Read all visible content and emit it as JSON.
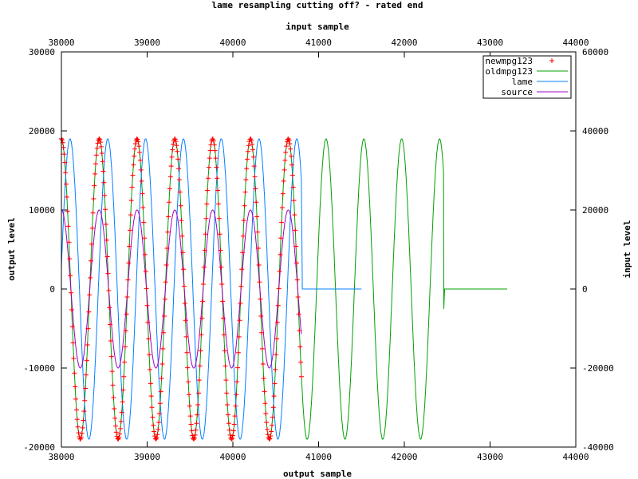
{
  "chart_data": {
    "type": "line",
    "title": "lame resampling cutting off? - rated end",
    "xlabel": "output sample",
    "ylabel": "output level",
    "x2label": "input sample",
    "y2label": "input level",
    "xlim": [
      38000,
      44000
    ],
    "ylim": [
      -20000,
      30000
    ],
    "x2lim": [
      38000,
      44000
    ],
    "y2lim": [
      -40000,
      60000
    ],
    "grid": false,
    "legend_position": "top-right",
    "x_ticks": [
      "38000",
      "39000",
      "40000",
      "41000",
      "42000",
      "43000",
      "44000"
    ],
    "y_ticks": [
      "-20000",
      "-10000",
      "0",
      "10000",
      "20000",
      "30000"
    ],
    "x2_ticks": [
      "38000",
      "39000",
      "40000",
      "41000",
      "42000",
      "43000",
      "44000"
    ],
    "y2_ticks": [
      "-40000",
      "-20000",
      "0",
      "20000",
      "40000",
      "60000"
    ],
    "series": [
      {
        "name": "newmpg123",
        "color": "#ff0000",
        "style": "points-plus",
        "axes": "x1y1",
        "x_range": [
          38000,
          40800
        ],
        "period": 441,
        "amplitude": 19000,
        "offset_start": 17000,
        "end_values": [
          -1000,
          -2500
        ]
      },
      {
        "name": "oldmpg123",
        "color": "#00a000",
        "style": "line",
        "axes": "x2y1",
        "x_range": [
          38000,
          42460
        ],
        "period": 441,
        "amplitude": 19000,
        "tail": {
          "x_range": [
            42460,
            43200
          ],
          "value": 0,
          "spike": -2500
        }
      },
      {
        "name": "lame",
        "color": "#0080ff",
        "style": "line",
        "axes": "x1y1",
        "x_range": [
          38000,
          41500
        ],
        "period": 441,
        "amplitude": 19000,
        "tail": {
          "x_range": [
            40800,
            41500
          ],
          "value": 0
        }
      },
      {
        "name": "source",
        "color": "#a000c0",
        "style": "line",
        "axes": "x2y2",
        "x_range": [
          38000,
          40800
        ],
        "period": 441,
        "amplitude": 20000
      }
    ]
  }
}
